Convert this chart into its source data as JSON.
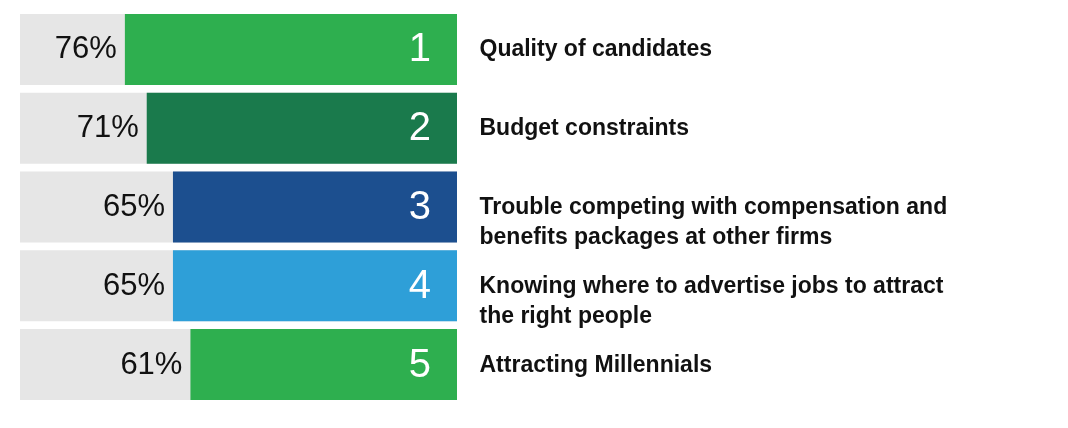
{
  "chart_data": {
    "type": "bar",
    "orientation": "horizontal",
    "categories": [
      "Quality of candidates",
      "Budget constraints",
      "Trouble competing with compensation and benefits packages at other firms",
      "Knowing where to advertise jobs to attract the right people",
      "Attracting Millennials"
    ],
    "values": [
      76,
      71,
      65,
      65,
      61
    ],
    "colors": [
      "#2eaf4f",
      "#1a7a4c",
      "#1c4f8f",
      "#2e9fd8",
      "#2eaf4f"
    ],
    "value_labels": [
      "76%",
      "71%",
      "65%",
      "65%",
      "61%"
    ],
    "annotations": [
      "1",
      "2",
      "3",
      "4",
      "5"
    ],
    "xlim": [
      100,
      0
    ],
    "tick_labels": false,
    "legend": false
  }
}
